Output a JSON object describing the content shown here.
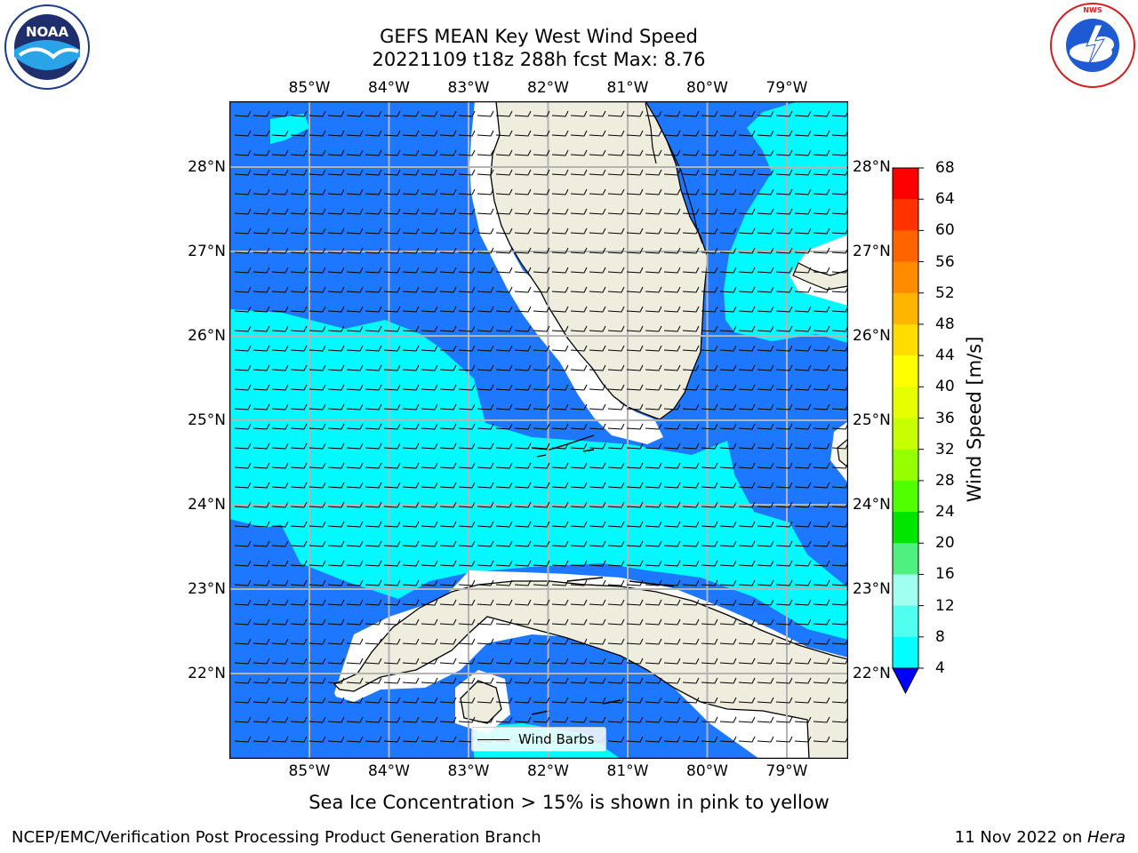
{
  "title": {
    "line1": "GEFS MEAN Key West Wind Speed",
    "line2": "20221109 t18z 288h fcst   Max: 8.76"
  },
  "logos": {
    "noaa_text": "NOAA",
    "noaa_ring_text": "NATIONAL OCEANIC AND ATMOSPHERIC ADMINISTRATION · U.S. DEPARTMENT OF COMMERCE",
    "nws_ring_text": "NATIONAL WEATHER SERVICE"
  },
  "map": {
    "lon_labels": [
      "85°W",
      "84°W",
      "83°W",
      "82°W",
      "81°W",
      "80°W",
      "79°W"
    ],
    "lat_labels": [
      "28°N",
      "27°N",
      "26°N",
      "25°N",
      "24°N",
      "23°N",
      "22°N"
    ],
    "legend_label": "Wind Barbs",
    "colors": {
      "land": "#eeedde",
      "speed_4_8": "#1e78ff",
      "speed_8_12": "#00faff",
      "grid": "#b4b4b4"
    }
  },
  "colorbar": {
    "label": "Wind Speed [m/s]",
    "ticks": [
      "68",
      "64",
      "60",
      "56",
      "52",
      "48",
      "44",
      "40",
      "36",
      "32",
      "28",
      "24",
      "20",
      "16",
      "12",
      "8",
      "4"
    ],
    "colors": [
      "#ff0000",
      "#ff3200",
      "#ff6400",
      "#ff8c00",
      "#ffb400",
      "#ffdc00",
      "#ffff00",
      "#e6ff00",
      "#c8ff00",
      "#96ff00",
      "#50ff00",
      "#00e600",
      "#50f080",
      "#a0fff0",
      "#50fff0",
      "#00ffff",
      "#1e78ff"
    ],
    "extend_color": "#0000ff"
  },
  "note": "Sea Ice Concentration > 15% is shown in pink to yellow",
  "footer": {
    "left": "NCEP/EMC/Verification Post Processing Product Generation Branch",
    "date": "11 Nov 2022 on ",
    "host": "Hera"
  }
}
